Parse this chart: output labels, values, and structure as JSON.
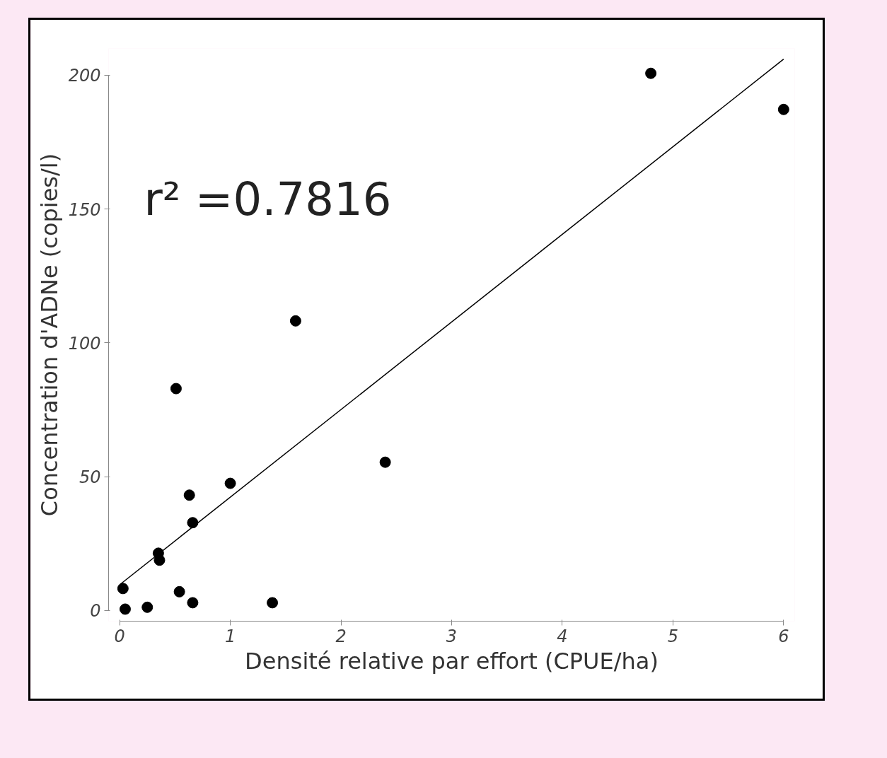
{
  "chart_data": {
    "type": "scatter",
    "xlabel": "Densité relative par effort (CPUE/ha)",
    "ylabel": "Concentration d'ADNe (copies/l)",
    "xlim": [
      -0.1,
      6.1
    ],
    "ylim": [
      -4,
      210
    ],
    "xticks": [
      0,
      1,
      2,
      3,
      4,
      5,
      6
    ],
    "yticks": [
      0,
      50,
      100,
      150,
      200
    ],
    "grid": false,
    "annotations": [
      "r² =0.7816"
    ],
    "series": [
      {
        "marker": "circle",
        "color": "#000000",
        "x": [
          0.03,
          0.05,
          0.25,
          0.35,
          0.36,
          0.51,
          0.54,
          0.63,
          0.66,
          0.66,
          1.0,
          1.38,
          1.59,
          2.4,
          4.8,
          6.0
        ],
        "values": [
          8.2,
          0.5,
          1.2,
          21.4,
          18.8,
          82.9,
          7,
          43.1,
          32.8,
          2.9,
          47.5,
          2.9,
          108.2,
          55.4,
          200.7,
          187.2
        ]
      },
      {
        "type": "line",
        "marker": "none",
        "color": "#000000",
        "line_style": "solid",
        "x": [
          0,
          6
        ],
        "values": [
          9.6,
          206
        ]
      }
    ]
  }
}
